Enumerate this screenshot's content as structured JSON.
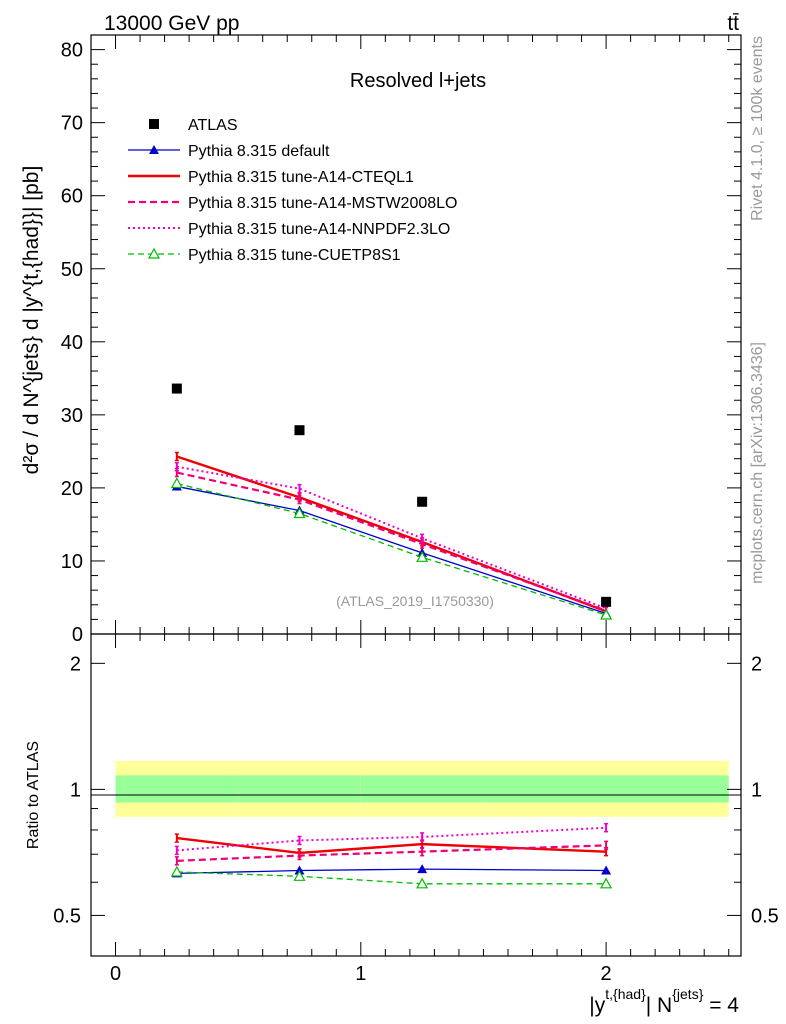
{
  "header": {
    "energy_label": "13000 GeV pp",
    "process_label": "tt̄"
  },
  "side_labels": {
    "rivet": "Rivet 4.1.0, ≥ 100k events",
    "mcplots": "mcplots.cern.ch [arXiv:1306.3436]"
  },
  "analysis_id": "(ATLAS_2019_I1750330)",
  "colors": {
    "atlas": "#000000",
    "default": "#0000cc",
    "cteql1": "#ee0000",
    "mstw": "#ee0077",
    "nnpdf": "#ee00cc",
    "cuetp": "#00bb00",
    "band_outer": "#ffff99",
    "band_inner": "#99ff99"
  },
  "chart_data": [
    {
      "type": "line",
      "title": "Resolved l+jets",
      "ylabel": "d²σ / d N^{jets} d |y^{t,{had}}| [pb]",
      "xlim": [
        -0.1,
        2.55
      ],
      "ylim": [
        0,
        82
      ],
      "yticks": [
        0,
        10,
        20,
        30,
        40,
        50,
        60,
        70,
        80
      ],
      "x": [
        0.25,
        0.75,
        1.25,
        2.0
      ],
      "atlas": {
        "name": "ATLAS",
        "values": [
          33.6,
          27.9,
          18.1,
          4.4
        ]
      },
      "series": [
        {
          "key": "default",
          "name": "Pythia 8.315 default",
          "style": "solid-triangle",
          "values": [
            20.2,
            16.9,
            11.1,
            2.8
          ]
        },
        {
          "key": "cteql1",
          "name": "Pythia 8.315 tune-A14-CTEQL1",
          "style": "solid-thick",
          "values": [
            24.3,
            18.7,
            12.6,
            3.1
          ]
        },
        {
          "key": "mstw",
          "name": "Pythia 8.315 tune-A14-MSTW2008LO",
          "style": "dashed",
          "values": [
            22.1,
            18.4,
            12.3,
            3.2
          ]
        },
        {
          "key": "nnpdf",
          "name": "Pythia 8.315 tune-A14-NNPDF2.3LO",
          "style": "dotted",
          "values": [
            22.9,
            19.9,
            13.1,
            3.5
          ]
        },
        {
          "key": "cuetp",
          "name": "Pythia 8.315 tune-CUETP8S1",
          "style": "dashed-open-triangle",
          "values": [
            20.6,
            16.5,
            10.5,
            2.6
          ]
        }
      ]
    },
    {
      "type": "line",
      "ylabel": "Ratio to ATLAS",
      "xlabel_main": "|y",
      "xlabel_sup1": "t,{had}",
      "xlabel_mid": "| N",
      "xlabel_sup2": "{jets}",
      "xlabel_end": " = 4",
      "xlim": [
        -0.1,
        2.55
      ],
      "ylim": [
        0.4,
        2.35
      ],
      "log_y": true,
      "ytick_labels": [
        "0.5",
        "1",
        "2"
      ],
      "ytick_values": [
        0.5,
        1,
        2
      ],
      "xtick_labels": [
        "0",
        "1",
        "2"
      ],
      "xtick_values": [
        0,
        1,
        2
      ],
      "band_bins": [
        [
          0,
          0.5
        ],
        [
          0.5,
          1.0
        ],
        [
          1.0,
          1.5
        ],
        [
          1.5,
          2.5
        ]
      ],
      "band_outer": [
        [
          0.86,
          1.17
        ],
        [
          0.86,
          1.17
        ],
        [
          0.86,
          1.17
        ],
        [
          0.86,
          1.17
        ]
      ],
      "band_inner": [
        [
          0.93,
          1.08
        ],
        [
          0.93,
          1.08
        ],
        [
          0.93,
          1.08
        ],
        [
          0.93,
          1.08
        ]
      ],
      "x": [
        0.25,
        0.75,
        1.25,
        2.0
      ],
      "series": [
        {
          "key": "default",
          "values": [
            0.63,
            0.64,
            0.645,
            0.64
          ]
        },
        {
          "key": "cteql1",
          "values": [
            0.765,
            0.705,
            0.74,
            0.71
          ]
        },
        {
          "key": "mstw",
          "values": [
            0.675,
            0.695,
            0.71,
            0.735
          ]
        },
        {
          "key": "nnpdf",
          "values": [
            0.715,
            0.755,
            0.77,
            0.81
          ]
        },
        {
          "key": "cuetp",
          "values": [
            0.635,
            0.62,
            0.595,
            0.595
          ]
        }
      ]
    }
  ]
}
